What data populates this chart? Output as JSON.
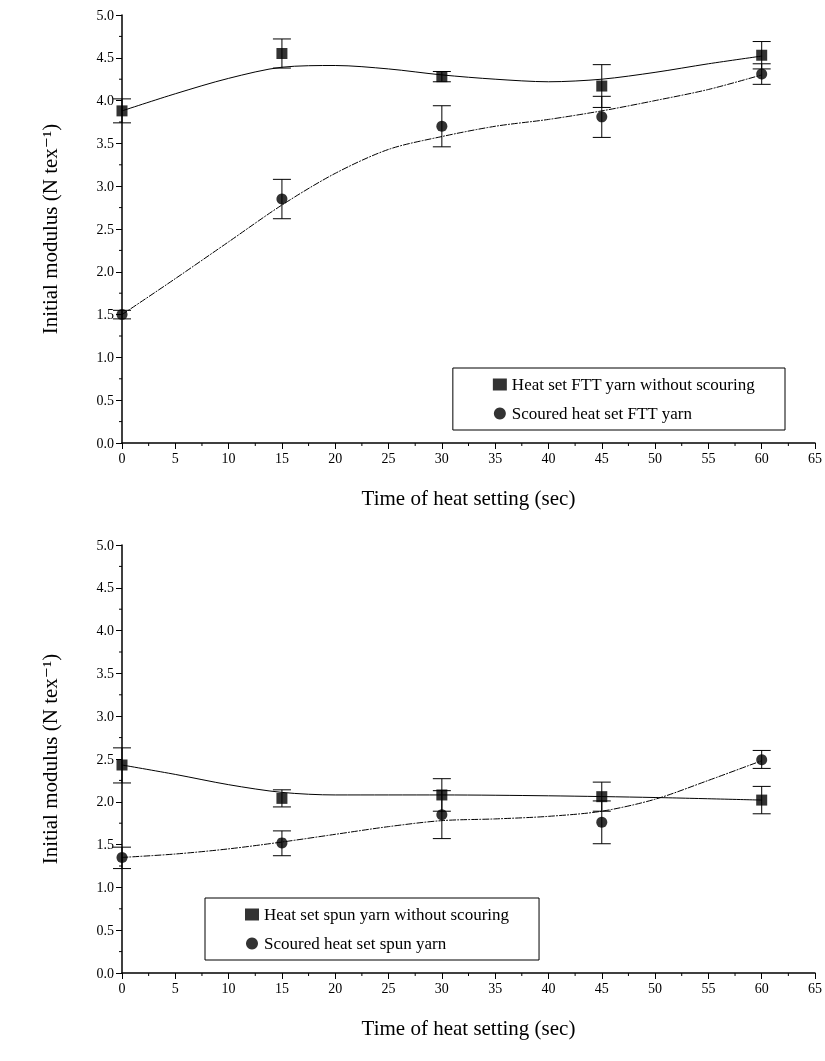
{
  "chart_data": [
    {
      "type": "scatter",
      "xlabel": "Time of heat setting (sec)",
      "ylabel": "Initial modulus (N tex⁻¹)",
      "xlim": [
        0,
        65
      ],
      "xticks": [
        0,
        5,
        10,
        15,
        20,
        25,
        30,
        35,
        40,
        45,
        50,
        55,
        60,
        65
      ],
      "ylim": [
        0,
        5
      ],
      "yticks": [
        {
          "value": 0,
          "label": "0.0"
        },
        0.5,
        {
          "value": 1,
          "label": "1.0"
        },
        1.5,
        {
          "value": 2,
          "label": "2.0"
        },
        2.5,
        {
          "value": 3,
          "label": "3.0"
        },
        3.5,
        {
          "value": 4,
          "label": "4.0"
        },
        4.5,
        {
          "value": 5,
          "label": "5.0"
        }
      ],
      "grid": false,
      "legend": "bottom right",
      "series": [
        {
          "name": "Heat set FTT yarn without scouring",
          "color": "#000000",
          "marker": "square",
          "x": [
            0,
            15,
            30,
            45,
            60
          ],
          "values": [
            3.88,
            4.55,
            4.28,
            4.17,
            4.53
          ],
          "errors": [
            [
              3.74,
              4.02
            ],
            [
              4.38,
              4.72
            ],
            [
              4.22,
              4.34
            ],
            [
              3.92,
              4.42
            ],
            [
              4.37,
              4.69
            ]
          ]
        },
        {
          "name": "Scoured heat set FTT yarn",
          "color": "#000000",
          "marker": "circle",
          "x": [
            0,
            15,
            30,
            45,
            60
          ],
          "values": [
            1.5,
            2.85,
            3.7,
            3.81,
            4.31
          ],
          "errors": [
            [
              1.45,
              1.55
            ],
            [
              2.62,
              3.08
            ],
            [
              3.46,
              3.94
            ],
            [
              3.57,
              4.05
            ],
            [
              4.19,
              4.43
            ]
          ]
        },
        {
          "type": "line",
          "color": "#000000",
          "line_style": "solid",
          "x": [
            0,
            5,
            10,
            15,
            20,
            25,
            30,
            35,
            40,
            45,
            50,
            55,
            60
          ],
          "values": [
            3.88,
            4.08,
            4.26,
            4.39,
            4.41,
            4.37,
            4.3,
            4.25,
            4.22,
            4.25,
            4.33,
            4.43,
            4.52
          ]
        },
        {
          "type": "line",
          "color": "#000000",
          "line_style": "dashed",
          "x": [
            0,
            5,
            10,
            15,
            20,
            25,
            30,
            35,
            40,
            45,
            50,
            55,
            60
          ],
          "values": [
            1.5,
            1.92,
            2.35,
            2.78,
            3.15,
            3.43,
            3.58,
            3.7,
            3.78,
            3.88,
            4.0,
            4.13,
            4.3
          ]
        }
      ]
    },
    {
      "type": "scatter",
      "xlabel": "Time of heat setting (sec)",
      "ylabel": "Initial modulus (N tex⁻¹)",
      "xlim": [
        0,
        65
      ],
      "xticks": [
        0,
        5,
        10,
        15,
        20,
        25,
        30,
        35,
        40,
        45,
        50,
        55,
        60,
        65
      ],
      "ylim": [
        0,
        5
      ],
      "yticks": [
        {
          "value": 0,
          "label": "0.0"
        },
        0.5,
        {
          "value": 1,
          "label": "1.0"
        },
        1.5,
        {
          "value": 2,
          "label": "2.0"
        },
        2.5,
        {
          "value": 3,
          "label": "3.0"
        },
        3.5,
        {
          "value": 4,
          "label": "4.0"
        },
        4.5,
        {
          "value": 5,
          "label": "5.0"
        }
      ],
      "grid": false,
      "legend": "bottom",
      "series": [
        {
          "name": "Heat set spun yarn without scouring",
          "color": "#000000",
          "marker": "square",
          "x": [
            0,
            15,
            30,
            45,
            60
          ],
          "values": [
            2.43,
            2.04,
            2.08,
            2.06,
            2.02
          ],
          "errors": [
            [
              2.22,
              2.63
            ],
            [
              1.94,
              2.14
            ],
            [
              1.89,
              2.27
            ],
            [
              1.89,
              2.23
            ],
            [
              1.86,
              2.18
            ]
          ]
        },
        {
          "name": "Scoured heat set spun yarn",
          "color": "#000000",
          "marker": "circle",
          "x": [
            0,
            15,
            30,
            45,
            60
          ],
          "values": [
            1.35,
            1.52,
            1.85,
            1.76,
            2.49
          ],
          "errors": [
            [
              1.22,
              1.47
            ],
            [
              1.37,
              1.66
            ],
            [
              1.57,
              2.13
            ],
            [
              1.51,
              2.01
            ],
            [
              2.39,
              2.6
            ]
          ]
        },
        {
          "type": "line",
          "color": "#000000",
          "line_style": "solid",
          "x": [
            0,
            5,
            10,
            15,
            20,
            30,
            40,
            50,
            60
          ],
          "values": [
            2.43,
            2.32,
            2.2,
            2.11,
            2.08,
            2.08,
            2.07,
            2.05,
            2.02
          ]
        },
        {
          "type": "line",
          "color": "#000000",
          "line_style": "dashed",
          "x": [
            0,
            5,
            10,
            15,
            20,
            25,
            30,
            35,
            40,
            45,
            50,
            55,
            60
          ],
          "values": [
            1.35,
            1.39,
            1.45,
            1.53,
            1.62,
            1.71,
            1.78,
            1.8,
            1.83,
            1.89,
            2.03,
            2.25,
            2.48
          ]
        }
      ]
    }
  ]
}
